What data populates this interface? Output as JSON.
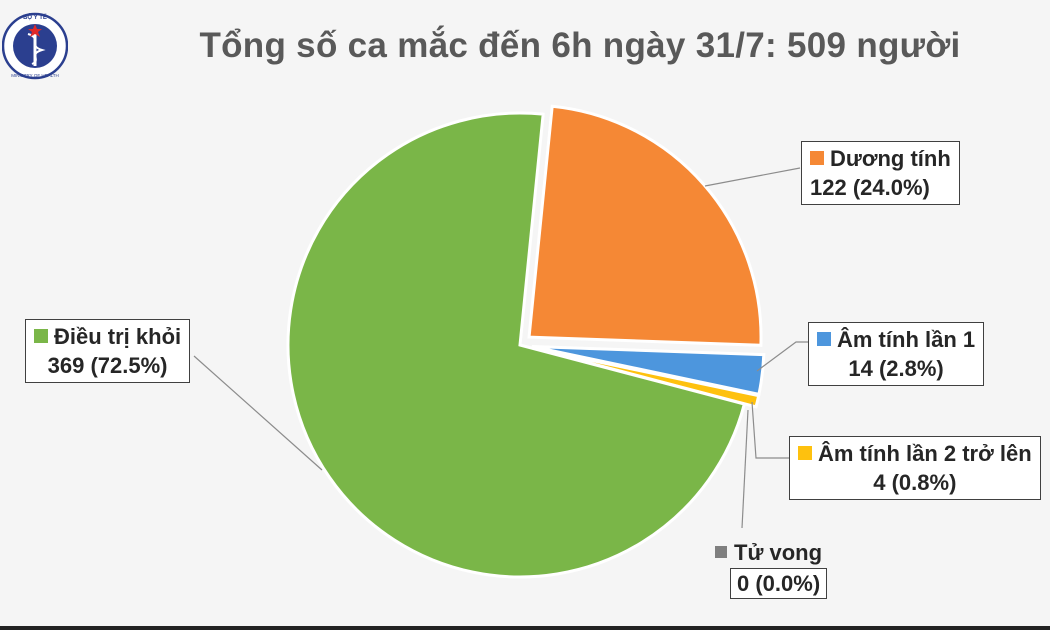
{
  "title": "Tổng số ca mắc đến 6h ngày 31/7: 509 người",
  "logo": {
    "text": "BỘ Y TẾ",
    "subtext": "MINISTRY OF HEALTH"
  },
  "colors": {
    "green": "#7ab648",
    "orange": "#f58835",
    "blue": "#4d96dd",
    "yellow": "#fec10e",
    "gray": "#7f7f7f"
  },
  "chart_data": {
    "type": "pie",
    "title": "Tổng số ca mắc đến 6h ngày 31/7: 509 người",
    "total": 509,
    "slices": [
      {
        "name": "Điều trị khỏi",
        "value": 369,
        "percent": "72.5%",
        "label": "369 (72.5%)",
        "color": "#7ab648",
        "exploded": false
      },
      {
        "name": "Dương tính",
        "value": 122,
        "percent": "24.0%",
        "label": "122 (24.0%)",
        "color": "#f58835",
        "exploded": true
      },
      {
        "name": "Âm tính lần 1",
        "value": 14,
        "percent": "2.8%",
        "label": "14 (2.8%)",
        "color": "#4d96dd",
        "exploded": true
      },
      {
        "name": "Âm tính lần 2 trở lên",
        "value": 4,
        "percent": "0.8%",
        "label": "4 (0.8%)",
        "color": "#fec10e",
        "exploded": true
      },
      {
        "name": "Tử vong",
        "value": 0,
        "percent": "0.0%",
        "label": "0 (0.0%)",
        "color": "#7f7f7f",
        "exploded": false
      }
    ]
  }
}
